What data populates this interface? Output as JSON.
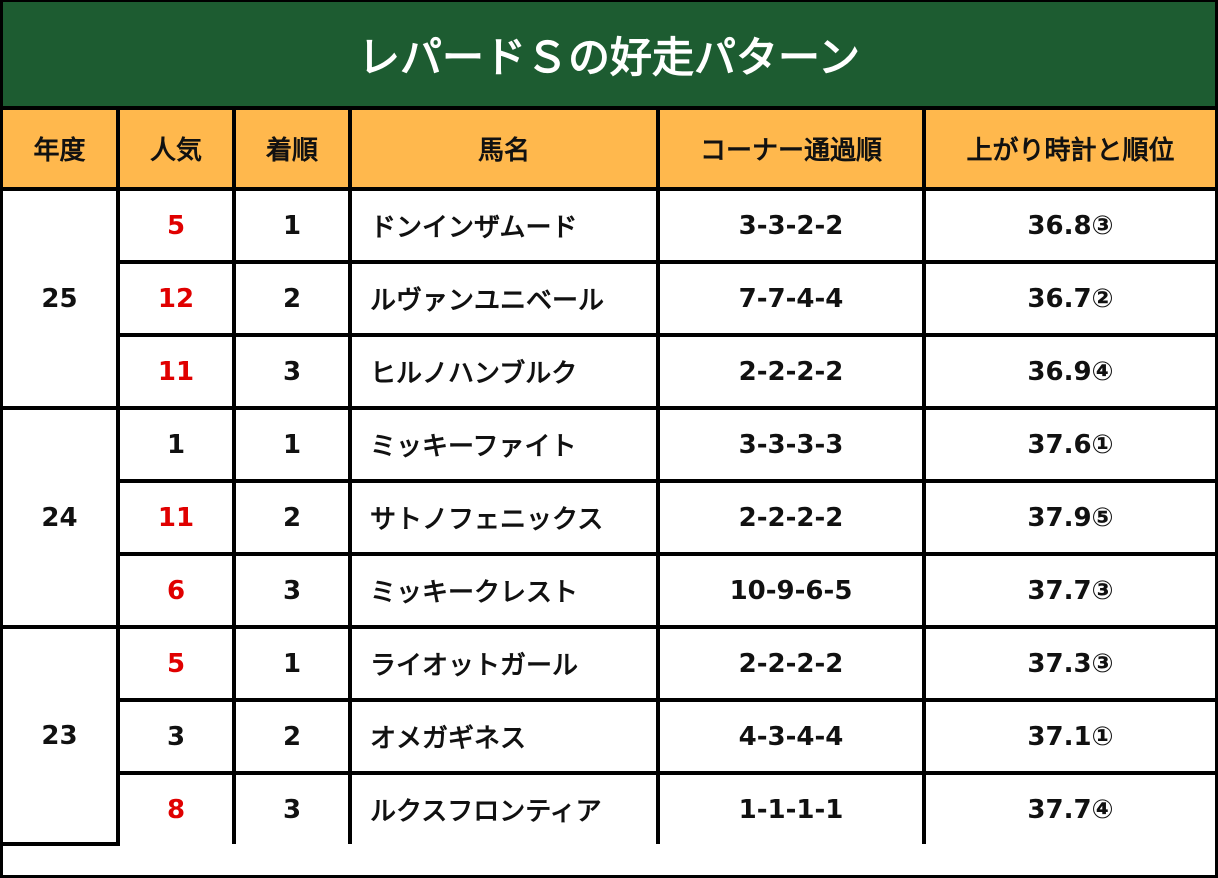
{
  "header": {
    "title": "レパードＳの好走パターン"
  },
  "table": {
    "columns": [
      "年度",
      "人気",
      "着順",
      "馬名",
      "コーナー通過順",
      "上がり時計と順位"
    ],
    "groups": [
      {
        "year": 25,
        "rows": [
          {
            "popularity": 5,
            "popularity_color": "#e00000",
            "finish": 1,
            "horse": "ドンインザムード",
            "corners": "3-3-2-2",
            "last3f": "36.8③"
          },
          {
            "popularity": 12,
            "popularity_color": "#e00000",
            "finish": 2,
            "horse": "ルヴァンユニベール",
            "corners": "7-7-4-4",
            "last3f": "36.7②"
          },
          {
            "popularity": 11,
            "popularity_color": "#e00000",
            "finish": 3,
            "horse": "ヒルノハンブルク",
            "corners": "2-2-2-2",
            "last3f": "36.9④"
          }
        ]
      },
      {
        "year": 24,
        "rows": [
          {
            "popularity": 1,
            "popularity_color": "#111111",
            "finish": 1,
            "horse": "ミッキーファイト",
            "corners": "3-3-3-3",
            "last3f": "37.6①"
          },
          {
            "popularity": 11,
            "popularity_color": "#e00000",
            "finish": 2,
            "horse": "サトノフェニックス",
            "corners": "2-2-2-2",
            "last3f": "37.9⑤"
          },
          {
            "popularity": 6,
            "popularity_color": "#e00000",
            "finish": 3,
            "horse": "ミッキークレスト",
            "corners": "10-9-6-5",
            "last3f": "37.7③"
          }
        ]
      },
      {
        "year": 23,
        "rows": [
          {
            "popularity": 5,
            "popularity_color": "#e00000",
            "finish": 1,
            "horse": "ライオットガール",
            "corners": "2-2-2-2",
            "last3f": "37.3③"
          },
          {
            "popularity": 3,
            "popularity_color": "#111111",
            "finish": 2,
            "horse": "オメガギネス",
            "corners": "4-3-4-4",
            "last3f": "37.1①"
          },
          {
            "popularity": 8,
            "popularity_color": "#e00000",
            "finish": 3,
            "horse": "ルクスフロンティア",
            "corners": "1-1-1-1",
            "last3f": "37.7④"
          }
        ]
      }
    ]
  }
}
